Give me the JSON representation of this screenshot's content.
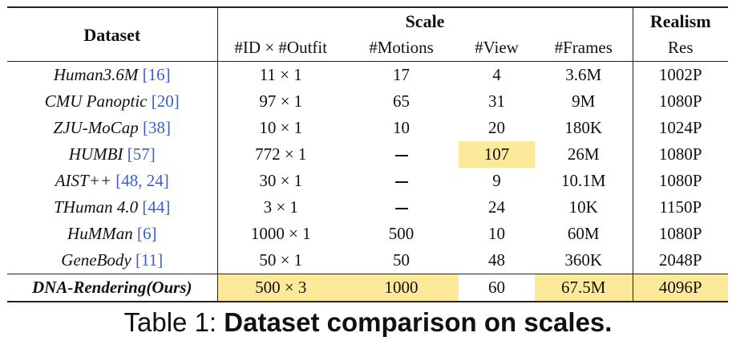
{
  "table": {
    "header": {
      "dataset": "Dataset",
      "scale": "Scale",
      "realism": "Realism",
      "cols": [
        "#ID × #Outfit",
        "#Motions",
        "#View",
        "#Frames",
        "Res"
      ]
    },
    "rows": [
      {
        "name": "Human3.6M",
        "cite": "[16]",
        "outfit": "11 × 1",
        "motions": "17",
        "view": "4",
        "frames": "3.6M",
        "res": "1002P"
      },
      {
        "name": "CMU Panoptic",
        "cite": "[20]",
        "outfit": "97 × 1",
        "motions": "65",
        "view": "31",
        "frames": "9M",
        "res": "1080P"
      },
      {
        "name": "ZJU-MoCap",
        "cite": "[38]",
        "outfit": "10 × 1",
        "motions": "10",
        "view": "20",
        "frames": "180K",
        "res": "1024P"
      },
      {
        "name": "HUMBI",
        "cite": "[57]",
        "outfit": "772 × 1",
        "motions": "–",
        "view": "107",
        "frames": "26M",
        "res": "1080P"
      },
      {
        "name": "AIST++",
        "cite": "[48, 24]",
        "outfit": "30 × 1",
        "motions": "–",
        "view": "9",
        "frames": "10.1M",
        "res": "1080P"
      },
      {
        "name": "THuman 4.0",
        "cite": "[44]",
        "outfit": "3 × 1",
        "motions": "–",
        "view": "24",
        "frames": "10K",
        "res": "1150P"
      },
      {
        "name": "HuMMan",
        "cite": "[6]",
        "outfit": "1000 × 1",
        "motions": "500",
        "view": "10",
        "frames": "60M",
        "res": "1080P"
      },
      {
        "name": "GeneBody",
        "cite": "[11]",
        "outfit": "50 × 1",
        "motions": "50",
        "view": "48",
        "frames": "360K",
        "res": "2048P"
      }
    ],
    "ours": {
      "name": "DNA-Rendering(Ours)",
      "outfit": "500 × 3",
      "motions": "1000",
      "view": "60",
      "frames": "67.5M",
      "res": "4096P"
    },
    "highlight_color": "#fce99a"
  },
  "caption": {
    "prefix": "Table 1: ",
    "bold": "Dataset comparison on scales."
  }
}
